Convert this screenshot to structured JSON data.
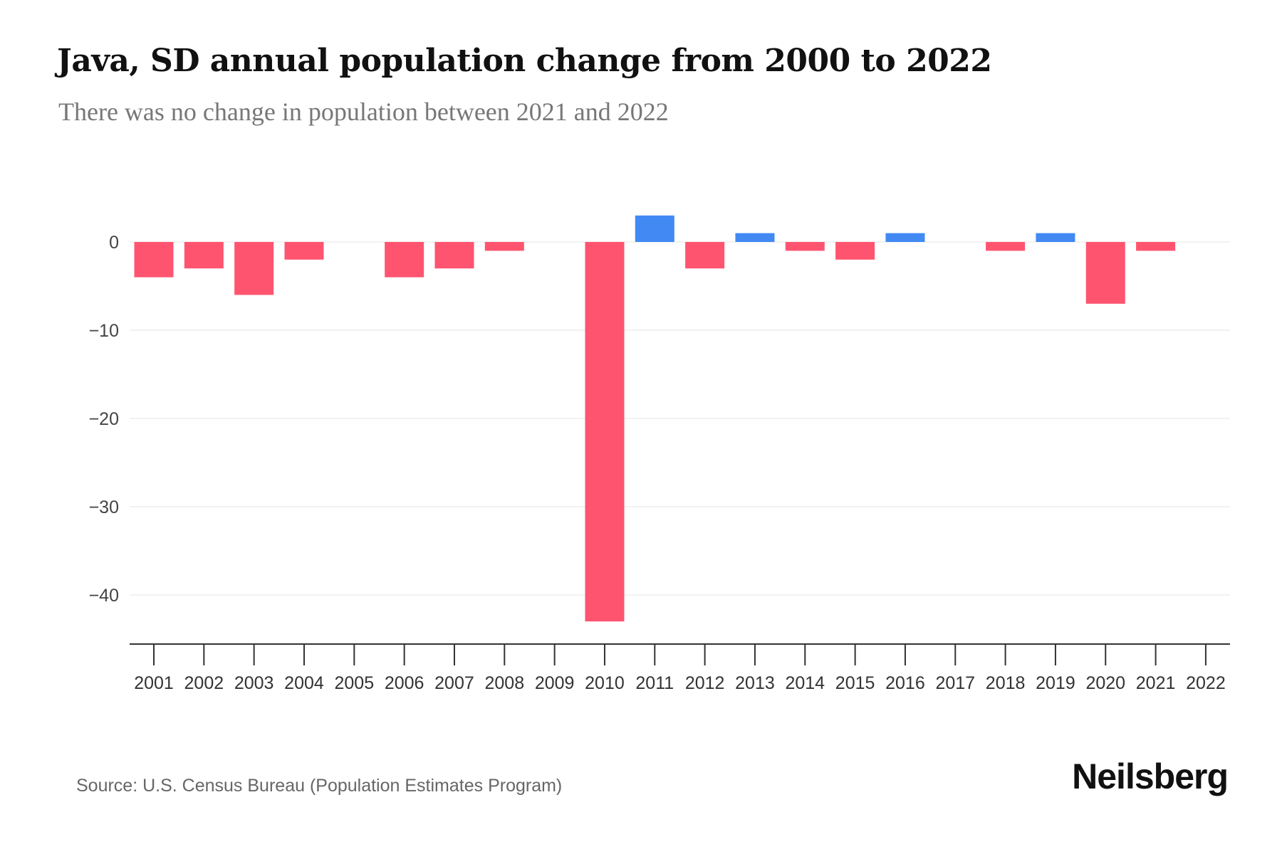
{
  "title": "Java, SD annual population change from 2000 to 2022",
  "subtitle": "There was no change in population between 2021 and 2022",
  "source": "Source: U.S. Census Bureau (Population Estimates Program)",
  "logo": "Neilsberg",
  "colors": {
    "negative": "#ff5470",
    "positive": "#4289f4"
  },
  "chart_data": {
    "type": "bar",
    "title": "Java, SD annual population change from 2000 to 2022",
    "xlabel": "",
    "ylabel": "",
    "categories": [
      "2001",
      "2002",
      "2003",
      "2004",
      "2005",
      "2006",
      "2007",
      "2008",
      "2009",
      "2010",
      "2011",
      "2012",
      "2013",
      "2014",
      "2015",
      "2016",
      "2017",
      "2018",
      "2019",
      "2020",
      "2021",
      "2022"
    ],
    "values": [
      -4,
      -3,
      -6,
      -2,
      0,
      -4,
      -3,
      -1,
      0,
      -43,
      3,
      -3,
      1,
      -1,
      -2,
      1,
      0,
      -1,
      1,
      -7,
      -1,
      0
    ],
    "yticks": [
      0,
      -10,
      -20,
      -30,
      -40
    ],
    "ytick_labels": [
      "0",
      "−10",
      "−20",
      "−30",
      "−40"
    ],
    "ylim": [
      -45.7,
      5
    ],
    "grid": true
  }
}
